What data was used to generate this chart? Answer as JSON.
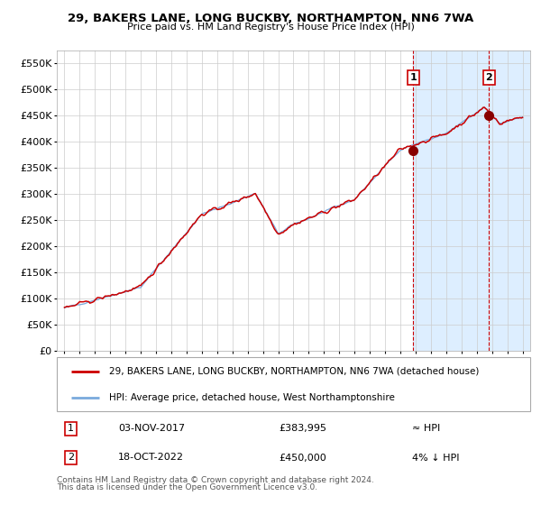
{
  "title": "29, BAKERS LANE, LONG BUCKBY, NORTHAMPTON, NN6 7WA",
  "subtitle": "Price paid vs. HM Land Registry's House Price Index (HPI)",
  "ylim": [
    0,
    575000
  ],
  "yticks": [
    0,
    50000,
    100000,
    150000,
    200000,
    250000,
    300000,
    350000,
    400000,
    450000,
    500000,
    550000
  ],
  "ytick_labels": [
    "£0",
    "£50K",
    "£100K",
    "£150K",
    "£200K",
    "£250K",
    "£300K",
    "£350K",
    "£400K",
    "£450K",
    "£500K",
    "£550K"
  ],
  "bg_color": "#ffffff",
  "plot_bg_color": "#ffffff",
  "grid_color": "#cccccc",
  "hpi_line_color": "#7aaadd",
  "price_line_color": "#cc0000",
  "highlight_bg": "#ddeeff",
  "vline_color": "#cc0000",
  "marker_color": "#880000",
  "point1_date": 2017.84,
  "point1_price": 383995,
  "point1_label": "1",
  "point2_date": 2022.8,
  "point2_price": 450000,
  "point2_label": "2",
  "legend_line1": "29, BAKERS LANE, LONG BUCKBY, NORTHAMPTON, NN6 7WA (detached house)",
  "legend_line2": "HPI: Average price, detached house, West Northamptonshire",
  "table_row1_num": "1",
  "table_row1_date": "03-NOV-2017",
  "table_row1_price": "£383,995",
  "table_row1_hpi": "≈ HPI",
  "table_row2_num": "2",
  "table_row2_date": "18-OCT-2022",
  "table_row2_price": "£450,000",
  "table_row2_hpi": "4% ↓ HPI",
  "footnote1": "Contains HM Land Registry data © Crown copyright and database right 2024.",
  "footnote2": "This data is licensed under the Open Government Licence v3.0.",
  "xstart": 1995,
  "xend": 2025
}
